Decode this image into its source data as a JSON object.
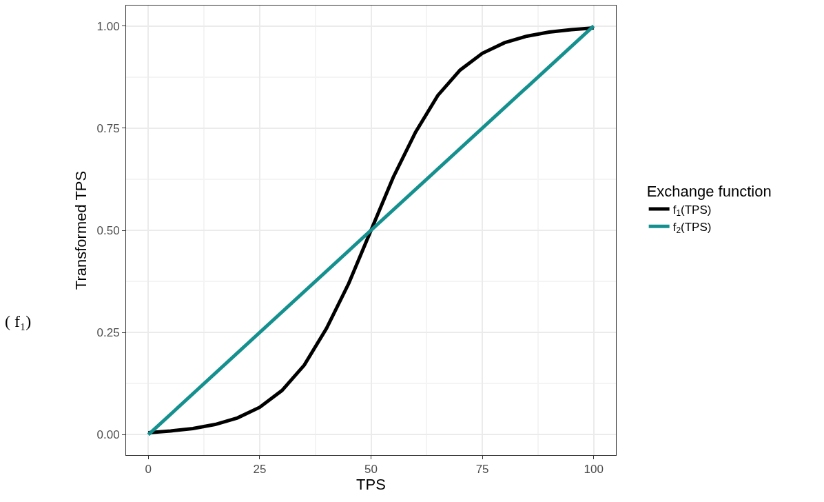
{
  "chart_data": {
    "type": "line",
    "xlabel": "TPS",
    "ylabel": "Transformed TPS",
    "legend_title": "Exchange function",
    "xlim": [
      -5,
      105
    ],
    "xticks": [
      0,
      25,
      50,
      75,
      100
    ],
    "ylim": [
      -0.05,
      1.05
    ],
    "yticks": [
      {
        "value": 0,
        "label": "0.00"
      },
      {
        "value": 0.25,
        "label": "0.25"
      },
      {
        "value": 0.5,
        "label": "0.50"
      },
      {
        "value": 0.75,
        "label": "0.75"
      },
      {
        "value": 1,
        "label": "1.00"
      }
    ],
    "grid": true,
    "legend": "right",
    "marker": "none",
    "line_style": "solid",
    "annotations": [
      "( f₁)"
    ],
    "series": [
      {
        "name": "f$_{1}$(TPS)",
        "color": "#000000",
        "x": [
          0,
          5,
          10,
          15,
          20,
          25,
          30,
          35,
          40,
          45,
          50,
          55,
          60,
          65,
          70,
          75,
          80,
          85,
          90,
          95,
          100
        ],
        "values": [
          0.005,
          0.009,
          0.015,
          0.025,
          0.041,
          0.067,
          0.108,
          0.17,
          0.26,
          0.37,
          0.5,
          0.63,
          0.74,
          0.83,
          0.892,
          0.933,
          0.959,
          0.975,
          0.985,
          0.991,
          0.995
        ]
      },
      {
        "name": "f$_{2}$(TPS)",
        "color": "#14908e",
        "x": [
          0,
          100
        ],
        "values": [
          0,
          1
        ]
      }
    ]
  }
}
